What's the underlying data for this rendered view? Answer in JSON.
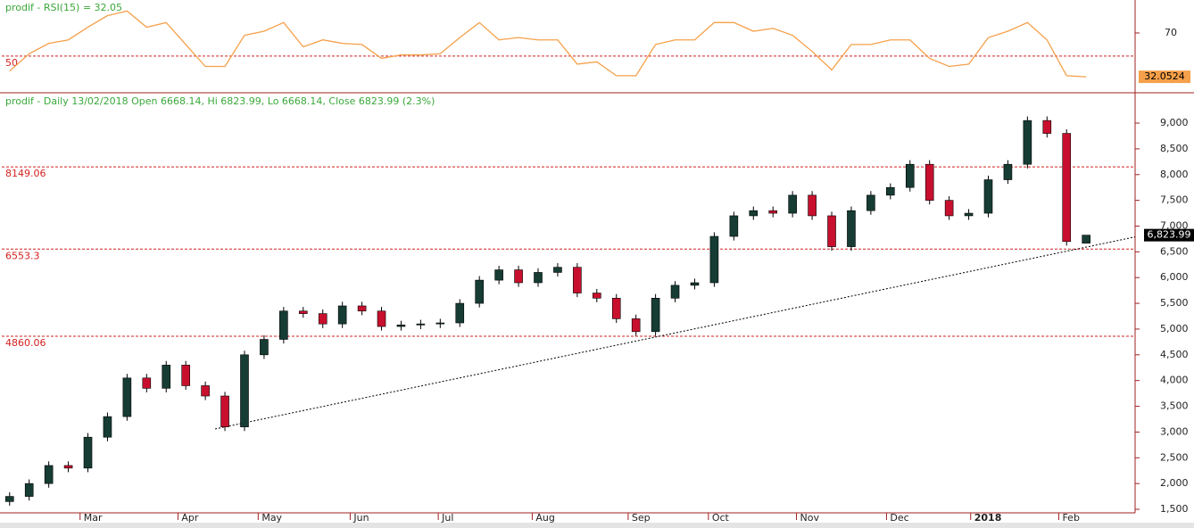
{
  "chart_data": [
    {
      "type": "line",
      "title": "prodif - RSI(15) = 32.05",
      "color": "#f5a04a",
      "xlim": [
        -0.4,
        57.5
      ],
      "ylim": [
        19,
        97
      ],
      "yticks": [
        70
      ],
      "levels": [
        50
      ],
      "level_color": "#d42020",
      "last_label": 32.0524,
      "values": [
        37,
        52,
        61,
        64,
        75,
        85,
        89,
        75,
        79,
        60,
        41,
        41,
        68,
        71.5,
        79,
        58,
        64,
        61,
        60,
        48,
        51,
        51,
        52,
        66,
        79,
        64,
        66,
        64,
        64,
        43,
        45,
        33,
        33,
        60,
        64,
        64,
        79,
        79,
        71.5,
        74,
        68,
        54,
        38,
        60,
        60,
        64,
        64,
        48,
        41,
        43,
        66,
        71.5,
        79,
        64,
        33,
        32.05
      ]
    },
    {
      "type": "candlestick",
      "title": "prodif - Daily 13/02/2018 Open 6668.14, Hi 6823.99, Lo 6668.14, Close 6823.99 (2.3%)",
      "up_color": "#163c33",
      "down_color": "#c8102e",
      "level_color": "#d42020",
      "xlim": [
        -0.4,
        57.5
      ],
      "ylim": [
        1431,
        9572
      ],
      "xticks": [
        {
          "value": 3.6,
          "label": "Mar"
        },
        {
          "value": 8.6,
          "label": "Apr"
        },
        {
          "value": 12.7,
          "label": "May"
        },
        {
          "value": 17.4,
          "label": "Jun"
        },
        {
          "value": 21.9,
          "label": "Jul"
        },
        {
          "value": 26.7,
          "label": "Aug"
        },
        {
          "value": 31.6,
          "label": "Sep"
        },
        {
          "value": 35.7,
          "label": "Oct"
        },
        {
          "value": 40.2,
          "label": "Nov"
        },
        {
          "value": 44.8,
          "label": "Dec"
        },
        {
          "value": 49.1,
          "label": "2018"
        },
        {
          "value": 53.6,
          "label": "Feb"
        }
      ],
      "yticks": [
        {
          "value": 1500,
          "label": "1,500"
        },
        {
          "value": 2000,
          "label": "2,000"
        },
        {
          "value": 2500,
          "label": "2,500"
        },
        {
          "value": 3000,
          "label": "3,000"
        },
        {
          "value": 3500,
          "label": "3,500"
        },
        {
          "value": 4000,
          "label": "4,000"
        },
        {
          "value": 4500,
          "label": "4,500"
        },
        {
          "value": 5000,
          "label": "5,000"
        },
        {
          "value": 5500,
          "label": "5,500"
        },
        {
          "value": 6000,
          "label": "6,000"
        },
        {
          "value": 6500,
          "label": "6,500"
        },
        {
          "value": 7000,
          "label": "7,000"
        },
        {
          "value": 7500,
          "label": "7,500"
        },
        {
          "value": 8000,
          "label": "8,000"
        },
        {
          "value": 8500,
          "label": "8,500"
        },
        {
          "value": 9000,
          "label": "9,000"
        }
      ],
      "levels": [
        8149.06,
        6553.3,
        4860.06
      ],
      "trendline": {
        "x": [
          10.5,
          57.5
        ],
        "y": [
          3060,
          6790
        ]
      },
      "last_label": {
        "value": 6823.99,
        "label": "6,823.99"
      },
      "open": [
        1650,
        1750,
        2000,
        2350,
        2300,
        2900,
        3300,
        4050,
        3850,
        4300,
        3900,
        3700,
        3100,
        4500,
        4800,
        5350,
        5300,
        5100,
        5450,
        5350,
        5050,
        5080,
        5100,
        5120,
        5500,
        5950,
        6150,
        5900,
        6100,
        6200,
        5700,
        5600,
        5200,
        4950,
        5600,
        5850,
        5900,
        6800,
        7200,
        7300,
        7250,
        7600,
        7200,
        6600,
        7300,
        7600,
        7750,
        8200,
        7500,
        7200,
        7250,
        7900,
        8200,
        9050,
        8800,
        6668.14
      ],
      "high": [
        1830,
        2080,
        2430,
        2430,
        2980,
        3380,
        4130,
        4130,
        4380,
        4380,
        3980,
        3780,
        4580,
        4880,
        5430,
        5430,
        5380,
        5530,
        5530,
        5430,
        5160,
        5180,
        5200,
        5580,
        6030,
        6230,
        6230,
        6180,
        6280,
        6280,
        5780,
        5680,
        5280,
        5680,
        5930,
        5980,
        6880,
        7280,
        7380,
        7380,
        7680,
        7680,
        7280,
        7380,
        7680,
        7830,
        8280,
        8280,
        7580,
        7330,
        7980,
        8280,
        9130,
        9130,
        8880,
        6823.99
      ],
      "low": [
        1570,
        1670,
        1920,
        2220,
        2220,
        2820,
        3220,
        3770,
        3770,
        3820,
        3620,
        3020,
        3020,
        4420,
        4720,
        5220,
        5020,
        5020,
        5270,
        4970,
        4970,
        5000,
        5020,
        5040,
        5420,
        5870,
        5820,
        5820,
        6020,
        5620,
        5520,
        5120,
        4870,
        4870,
        5520,
        5770,
        5820,
        6720,
        7120,
        7170,
        7170,
        7120,
        6520,
        6520,
        7220,
        7520,
        7670,
        7420,
        7120,
        7120,
        7170,
        7820,
        8120,
        8720,
        6620,
        6668.14
      ],
      "close": [
        1750,
        2000,
        2350,
        2300,
        2900,
        3300,
        4050,
        3850,
        4300,
        3900,
        3700,
        3100,
        4500,
        4800,
        5350,
        5300,
        5100,
        5450,
        5350,
        5050,
        5080,
        5100,
        5120,
        5500,
        5950,
        6150,
        5900,
        6100,
        6200,
        5700,
        5600,
        5200,
        4950,
        5600,
        5850,
        5900,
        6800,
        7200,
        7300,
        7250,
        7600,
        7200,
        6600,
        7300,
        7600,
        7750,
        8200,
        7500,
        7200,
        7250,
        7900,
        8200,
        9050,
        8800,
        6700,
        6823.99
      ]
    }
  ]
}
